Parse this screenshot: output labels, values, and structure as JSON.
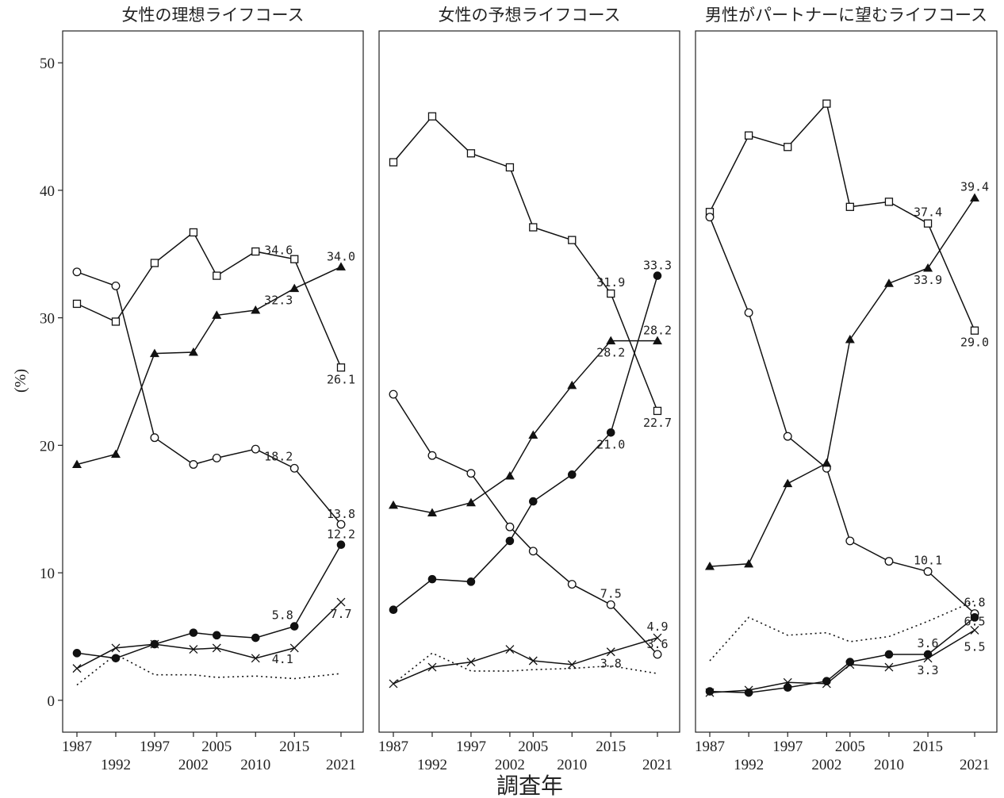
{
  "chart_data": {
    "type": "line",
    "xlabel": "調査年",
    "ylabel": "(%)",
    "ylim": [
      -2.5,
      52.5
    ],
    "yticks": [
      0,
      10,
      20,
      30,
      40,
      50
    ],
    "x": [
      1987,
      1992,
      1997,
      2002,
      2005,
      2010,
      2015,
      2021
    ],
    "xtick_labels_top": [
      "1987",
      "1997",
      "2005",
      "2015"
    ],
    "xtick_labels_bottom": [
      "1992",
      "2002",
      "2010",
      "2021"
    ],
    "grid": false,
    "legend": "none",
    "panels": [
      {
        "title": "女性の理想ライフコース",
        "series": [
          {
            "marker": "square-open",
            "line": "solid",
            "values": [
              31.1,
              29.7,
              34.3,
              36.7,
              33.3,
              35.2,
              34.6,
              26.1
            ]
          },
          {
            "marker": "circle-open",
            "line": "solid",
            "values": [
              33.6,
              32.5,
              20.6,
              18.5,
              19.0,
              19.7,
              18.2,
              13.8
            ]
          },
          {
            "marker": "triangle-filled",
            "line": "solid",
            "values": [
              18.5,
              19.3,
              27.2,
              27.3,
              30.2,
              30.6,
              32.3,
              34.0
            ]
          },
          {
            "marker": "circle-filled",
            "line": "solid",
            "values": [
              3.7,
              3.3,
              4.4,
              5.3,
              5.1,
              4.9,
              5.8,
              12.2
            ]
          },
          {
            "marker": "cross",
            "line": "solid",
            "values": [
              2.5,
              4.1,
              4.4,
              4.0,
              4.1,
              3.3,
              4.1,
              7.7
            ]
          },
          {
            "marker": "none",
            "line": "dotted",
            "values": [
              1.2,
              3.6,
              2.0,
              2.0,
              1.8,
              1.9,
              1.7,
              2.1
            ]
          }
        ],
        "annotations": [
          {
            "text": "34.6",
            "x": 2015,
            "y": 34.6,
            "dx": -20,
            "dy": -6
          },
          {
            "text": "34.0",
            "x": 2021,
            "y": 34.0,
            "dx": 0,
            "dy": -8
          },
          {
            "text": "32.3",
            "x": 2015,
            "y": 32.3,
            "dx": -20,
            "dy": 20
          },
          {
            "text": "26.1",
            "x": 2021,
            "y": 26.1,
            "dx": 0,
            "dy": 20
          },
          {
            "text": "18.2",
            "x": 2015,
            "y": 18.2,
            "dx": -20,
            "dy": -10
          },
          {
            "text": "13.8",
            "x": 2021,
            "y": 13.8,
            "dx": 0,
            "dy": -8
          },
          {
            "text": "12.2",
            "x": 2021,
            "y": 12.2,
            "dx": 0,
            "dy": -8
          },
          {
            "text": "5.8",
            "x": 2015,
            "y": 5.8,
            "dx": -15,
            "dy": -9
          },
          {
            "text": "7.7",
            "x": 2021,
            "y": 7.7,
            "dx": 0,
            "dy": 20
          },
          {
            "text": "4.1",
            "x": 2015,
            "y": 4.1,
            "dx": -15,
            "dy": 19
          }
        ]
      },
      {
        "title": "女性の予想ライフコース",
        "series": [
          {
            "marker": "square-open",
            "line": "solid",
            "values": [
              42.2,
              45.8,
              42.9,
              41.8,
              37.1,
              36.1,
              31.9,
              22.7
            ]
          },
          {
            "marker": "circle-open",
            "line": "solid",
            "values": [
              24.0,
              19.2,
              17.8,
              13.6,
              11.7,
              9.1,
              7.5,
              3.6
            ]
          },
          {
            "marker": "triangle-filled",
            "line": "solid",
            "values": [
              15.3,
              14.7,
              15.5,
              17.6,
              20.8,
              24.7,
              28.2,
              28.2
            ]
          },
          {
            "marker": "circle-filled",
            "line": "solid",
            "values": [
              7.1,
              9.5,
              9.3,
              12.5,
              15.6,
              17.7,
              21.0,
              33.3
            ]
          },
          {
            "marker": "cross",
            "line": "solid",
            "values": [
              1.3,
              2.6,
              3.0,
              4.0,
              3.1,
              2.8,
              3.8,
              4.9
            ]
          },
          {
            "marker": "none",
            "line": "dotted",
            "values": [
              1.3,
              3.7,
              2.3,
              2.3,
              2.4,
              2.5,
              2.7,
              2.1
            ]
          }
        ],
        "annotations": [
          {
            "text": "33.3",
            "x": 2021,
            "y": 33.3,
            "dx": 0,
            "dy": -8
          },
          {
            "text": "31.9",
            "x": 2015,
            "y": 31.9,
            "dx": 0,
            "dy": -9
          },
          {
            "text": "28.2",
            "x": 2021,
            "y": 28.2,
            "dx": 0,
            "dy": -8
          },
          {
            "text": "28.2",
            "x": 2015,
            "y": 28.2,
            "dx": 0,
            "dy": 20
          },
          {
            "text": "22.7",
            "x": 2021,
            "y": 22.7,
            "dx": 0,
            "dy": 20
          },
          {
            "text": "21.0",
            "x": 2015,
            "y": 21.0,
            "dx": 0,
            "dy": 20
          },
          {
            "text": "7.5",
            "x": 2015,
            "y": 7.5,
            "dx": 0,
            "dy": -9
          },
          {
            "text": "4.9",
            "x": 2021,
            "y": 4.9,
            "dx": 0,
            "dy": -9
          },
          {
            "text": "3.8",
            "x": 2015,
            "y": 3.8,
            "dx": 0,
            "dy": 20
          },
          {
            "text": "3.6",
            "x": 2021,
            "y": 3.6,
            "dx": 0,
            "dy": -8
          }
        ]
      },
      {
        "title": "男性がパートナーに望むライフコース",
        "series": [
          {
            "marker": "square-open",
            "line": "solid",
            "values": [
              38.3,
              44.3,
              43.4,
              46.8,
              38.7,
              39.1,
              37.4,
              29.0
            ]
          },
          {
            "marker": "circle-open",
            "line": "solid",
            "values": [
              37.9,
              30.4,
              20.7,
              18.2,
              12.5,
              10.9,
              10.1,
              6.8
            ]
          },
          {
            "marker": "triangle-filled",
            "line": "solid",
            "values": [
              10.5,
              10.7,
              17.0,
              18.6,
              28.3,
              32.7,
              33.9,
              39.4
            ]
          },
          {
            "marker": "circle-filled",
            "line": "solid",
            "values": [
              0.7,
              0.6,
              1.0,
              1.5,
              3.0,
              3.6,
              3.6,
              6.5
            ]
          },
          {
            "marker": "cross",
            "line": "solid",
            "values": [
              0.6,
              0.8,
              1.4,
              1.3,
              2.8,
              2.6,
              3.3,
              5.5
            ]
          },
          {
            "marker": "none",
            "line": "dotted",
            "values": [
              3.1,
              6.5,
              5.1,
              5.3,
              4.6,
              5.0,
              6.2,
              7.8
            ]
          }
        ],
        "annotations": [
          {
            "text": "39.4",
            "x": 2021,
            "y": 39.4,
            "dx": 0,
            "dy": -9
          },
          {
            "text": "37.4",
            "x": 2015,
            "y": 37.4,
            "dx": 0,
            "dy": -9
          },
          {
            "text": "33.9",
            "x": 2015,
            "y": 33.9,
            "dx": 0,
            "dy": 20
          },
          {
            "text": "29.0",
            "x": 2021,
            "y": 29.0,
            "dx": 0,
            "dy": 20
          },
          {
            "text": "10.1",
            "x": 2015,
            "y": 10.1,
            "dx": 0,
            "dy": -9
          },
          {
            "text": "6.8",
            "x": 2021,
            "y": 6.8,
            "dx": 0,
            "dy": -9
          },
          {
            "text": "6.5",
            "x": 2021,
            "y": 6.5,
            "dx": 0,
            "dy": 10
          },
          {
            "text": "5.5",
            "x": 2021,
            "y": 5.5,
            "dx": 0,
            "dy": 26
          },
          {
            "text": "3.6",
            "x": 2015,
            "y": 3.6,
            "dx": 0,
            "dy": -9
          },
          {
            "text": "3.3",
            "x": 2015,
            "y": 3.3,
            "dx": 0,
            "dy": 20
          }
        ]
      }
    ]
  }
}
